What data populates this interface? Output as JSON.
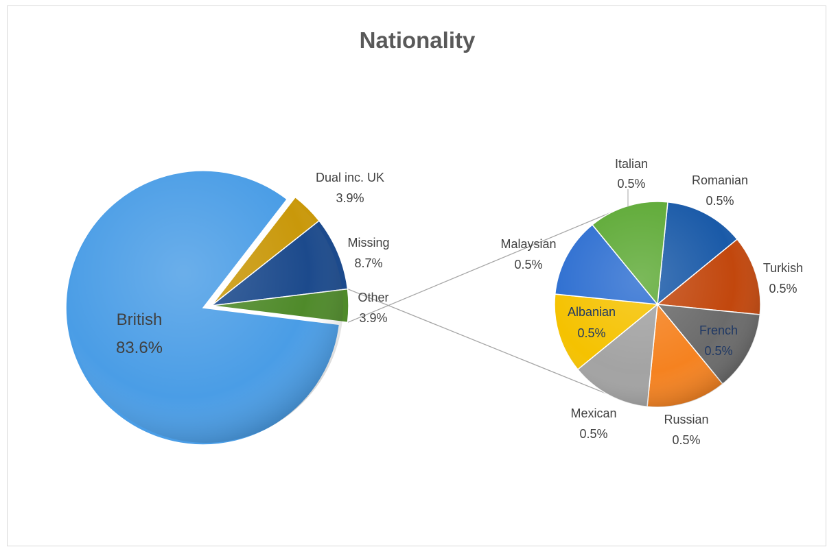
{
  "chart_data": {
    "type": "pie",
    "subtype": "pie-of-pie",
    "title": "Nationality",
    "primary": {
      "slices": [
        {
          "name": "British",
          "value_label": "83.6%",
          "value": 83.6,
          "color": "#4a9de6"
        },
        {
          "name": "Dual inc. UK",
          "value_label": "3.9%",
          "value": 3.9,
          "color": "#c9980a"
        },
        {
          "name": "Missing",
          "value_label": "8.7%",
          "value": 8.7,
          "color": "#1c4a8c"
        },
        {
          "name": "Other",
          "value_label": "3.9%",
          "value": 3.9,
          "color": "#4f8a2a"
        }
      ]
    },
    "secondary": {
      "slices": [
        {
          "name": "Italian",
          "value_label": "0.5%",
          "value": 0.5,
          "color": "#1a5aa8"
        },
        {
          "name": "Romanian",
          "value_label": "0.5%",
          "value": 0.5,
          "color": "#c2470d"
        },
        {
          "name": "Turkish",
          "value_label": "0.5%",
          "value": 0.5,
          "color": "#6b6b6b"
        },
        {
          "name": "French",
          "value_label": "0.5%",
          "value": 0.5,
          "color": "#f58220"
        },
        {
          "name": "Russian",
          "value_label": "0.5%",
          "value": 0.5,
          "color": "#a3a3a3"
        },
        {
          "name": "Mexican",
          "value_label": "0.5%",
          "value": 0.5,
          "color": "#f5c200"
        },
        {
          "name": "Albanian",
          "value_label": "0.5%",
          "value": 0.5,
          "color": "#2e6fd1"
        },
        {
          "name": "Malaysian",
          "value_label": "0.5%",
          "value": 0.5,
          "color": "#5eaa36"
        }
      ]
    }
  }
}
